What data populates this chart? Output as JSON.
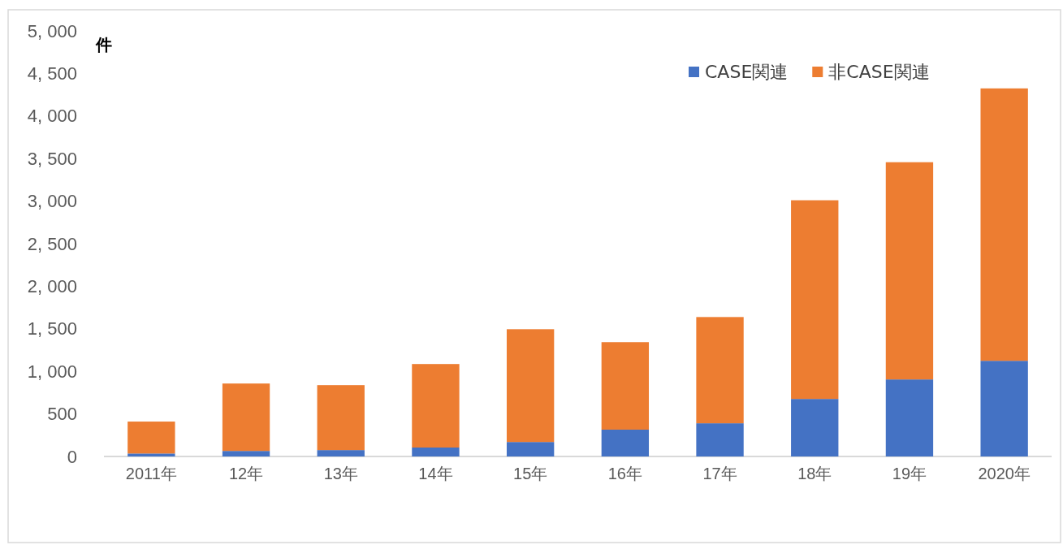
{
  "chart_data": {
    "type": "bar",
    "stacked": true,
    "ylabel": "件",
    "categories": [
      "2011年",
      "12年",
      "13年",
      "14年",
      "15年",
      "16年",
      "17年",
      "18年",
      "19年",
      "2020年"
    ],
    "series": [
      {
        "name": "CASE関連",
        "color": "#4472c4",
        "values": [
          35,
          65,
          75,
          105,
          170,
          315,
          390,
          676,
          905,
          1124
        ]
      },
      {
        "name": "非CASE関連",
        "color": "#ed7d31",
        "values": [
          375,
          792,
          763,
          981,
          1325,
          1028,
          1248,
          2334,
          2552,
          3200
        ]
      }
    ],
    "ylim": [
      0,
      5000
    ],
    "yticks": [
      {
        "value": 0,
        "label": "0"
      },
      {
        "value": 500,
        "label": "500"
      },
      {
        "value": 1000,
        "label": "1, 000"
      },
      {
        "value": 1500,
        "label": "1, 500"
      },
      {
        "value": 2000,
        "label": "2, 000"
      },
      {
        "value": 2500,
        "label": "2, 500"
      },
      {
        "value": 3000,
        "label": "3, 000"
      },
      {
        "value": 3500,
        "label": "3, 500"
      },
      {
        "value": 4000,
        "label": "4, 000"
      },
      {
        "value": 4500,
        "label": "4, 500"
      },
      {
        "value": 5000,
        "label": "5, 000"
      }
    ],
    "legend": "top right",
    "grid": false
  }
}
